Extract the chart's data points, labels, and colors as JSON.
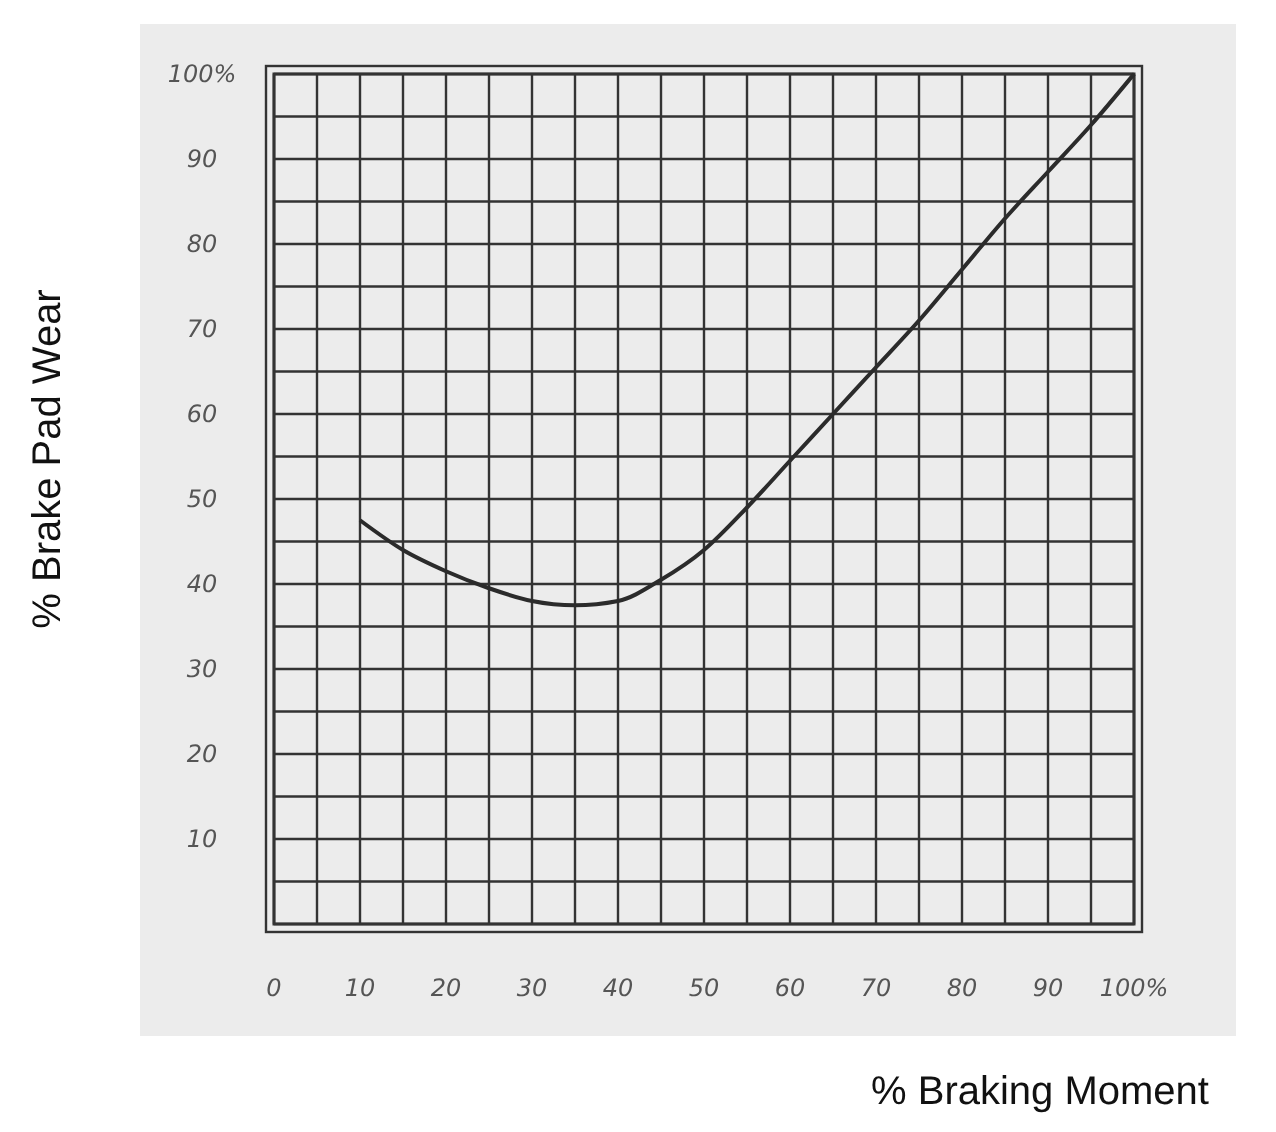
{
  "chart_data": {
    "type": "line",
    "xlabel": "% Braking Moment",
    "ylabel": "% Brake Pad Wear",
    "x": [
      10,
      15,
      20,
      25,
      30,
      35,
      40,
      45,
      50,
      55,
      60,
      65,
      70,
      75,
      80,
      85,
      90,
      95,
      100
    ],
    "series": [
      {
        "color": "#2b2b2b",
        "values": [
          47.5,
          44,
          41.5,
          39.5,
          38,
          37.5,
          38,
          40.5,
          44,
          49,
          54.5,
          60,
          65.5,
          71,
          77,
          83,
          88.5,
          94,
          100
        ]
      }
    ],
    "xlim": [
      0,
      100
    ],
    "ylim": [
      0,
      100
    ],
    "xticks": [
      0,
      10,
      20,
      30,
      40,
      50,
      60,
      70,
      80,
      90,
      {
        "value": 100,
        "label": "100%"
      }
    ],
    "yticks": [
      10,
      20,
      30,
      40,
      50,
      60,
      70,
      80,
      90,
      {
        "value": 100,
        "label": "100%"
      }
    ],
    "grid": true,
    "marker": "none",
    "line_style": "solid"
  }
}
